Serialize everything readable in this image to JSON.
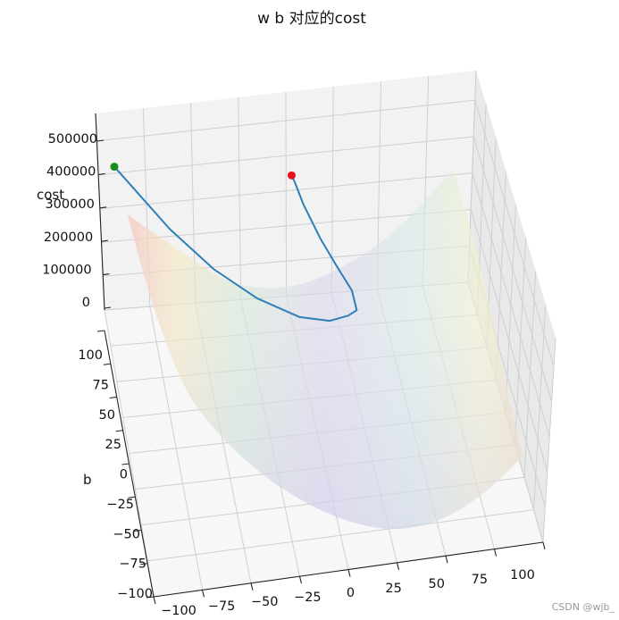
{
  "chart_data": {
    "type": "surface3d",
    "title": "w b 对应的cost",
    "zlabel": "cost",
    "ylabel": "b",
    "xlabel": "",
    "x_ticks": [
      "−100",
      "−75",
      "−50",
      "−25",
      "0",
      "25",
      "50",
      "75",
      "100"
    ],
    "y_ticks": [
      "−100",
      "−75",
      "−50",
      "−25",
      "0",
      "25",
      "50",
      "75",
      "100"
    ],
    "z_ticks": [
      "0",
      "100000",
      "200000",
      "300000",
      "400000",
      "500000"
    ],
    "xlim": [
      -100,
      100
    ],
    "ylim": [
      -100,
      100
    ],
    "zlim": [
      0,
      500000
    ],
    "grid": true,
    "surface_colormap": "Spectral",
    "series": [
      {
        "type": "path",
        "color": "#2f7fb8",
        "points": [
          [
            -100,
            60
          ],
          [
            -75,
            25
          ],
          [
            -55,
            0
          ],
          [
            -35,
            -20
          ],
          [
            -15,
            -35
          ],
          [
            0,
            -40
          ],
          [
            10,
            -38
          ],
          [
            15,
            -35
          ],
          [
            15,
            -20
          ],
          [
            10,
            0
          ],
          [
            5,
            20
          ],
          [
            0,
            45
          ],
          [
            -2,
            60
          ],
          [
            -3,
            65
          ]
        ]
      }
    ],
    "markers": [
      {
        "name": "start",
        "color": "#1e8b1e",
        "point": [
          -100,
          60
        ]
      },
      {
        "name": "end",
        "color": "#e8101e",
        "point": [
          -3,
          65
        ]
      }
    ],
    "watermark": "CSDN @wjb_"
  }
}
